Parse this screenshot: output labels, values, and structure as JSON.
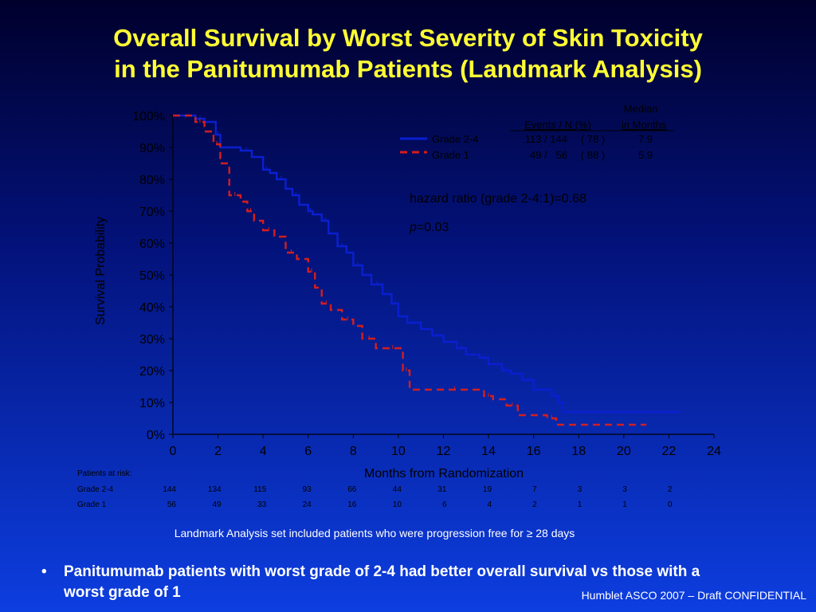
{
  "slide": {
    "title_line1": "Overall Survival by Worst Severity of Skin Toxicity",
    "title_line2": "in the Panitumumab Patients (Landmark Analysis)",
    "footnote": "Landmark Analysis set included patients who were progression free for ≥ 28 days",
    "bullet_symbol": "•",
    "bullet_text": "Panitumumab patients with worst grade of 2-4 had better overall survival vs those with a worst grade of 1",
    "credit": "Humblet ASCO 2007 – Draft  CONFIDENTIAL"
  },
  "chart_data": {
    "type": "line",
    "step": true,
    "xlabel": "Months from Randomization",
    "ylabel": "Survival Probability",
    "xlim": [
      0,
      24
    ],
    "ylim": [
      0,
      100
    ],
    "x_ticks": [
      "0",
      "2",
      "4",
      "6",
      "8",
      "10",
      "12",
      "14",
      "16",
      "18",
      "20",
      "22",
      "24"
    ],
    "y_ticks": [
      "0%",
      "10%",
      "20%",
      "30%",
      "40%",
      "50%",
      "60%",
      "70%",
      "80%",
      "90%",
      "100%"
    ],
    "grid": false,
    "legend": {
      "placement": "top-right",
      "header_events": "Events / N (%)",
      "header_median_line1": "Median",
      "header_median_line2": "in Months",
      "rows": [
        {
          "label": "Grade 2-4",
          "events": "113 / 144",
          "pct": "( 78 )",
          "median": "7.9"
        },
        {
          "label": "Grade 1",
          "events": "49 /   56",
          "pct": "( 88 )",
          "median": "5.9"
        }
      ]
    },
    "annotations": {
      "hazard_ratio": "hazard ratio (grade 2-4:1)=0.68",
      "p_italic": "p",
      "p_rest": "=0.03"
    },
    "series": [
      {
        "name": "Grade 2-4",
        "color": "#0a1fd0",
        "dash": "solid",
        "x": [
          0,
          1.0,
          1.4,
          1.9,
          2.1,
          3.0,
          3.5,
          4.0,
          4.3,
          4.6,
          5.0,
          5.3,
          5.6,
          6.0,
          6.2,
          6.6,
          6.9,
          7.3,
          7.7,
          8.0,
          8.4,
          8.8,
          9.3,
          9.7,
          10.0,
          10.4,
          11.0,
          11.5,
          12.0,
          12.6,
          13.0,
          13.6,
          14.0,
          14.6,
          15.0,
          15.5,
          16.0,
          16.8,
          17.1,
          17.3,
          22.5
        ],
        "y": [
          100,
          99,
          98,
          94,
          90,
          89,
          87,
          83,
          82,
          80,
          77,
          75,
          72,
          70,
          69,
          67,
          63,
          59,
          57,
          53,
          50,
          47,
          44,
          41,
          37,
          35,
          33,
          31,
          29,
          27,
          25,
          24,
          22,
          20,
          19,
          17,
          14,
          12,
          10,
          7,
          7
        ]
      },
      {
        "name": "Grade 1",
        "color": "#d41e1e",
        "dash": "dashed",
        "x": [
          0,
          1.0,
          1.4,
          1.8,
          2.1,
          2.5,
          3.0,
          3.3,
          3.6,
          4.0,
          4.5,
          5.0,
          5.5,
          6.0,
          6.3,
          6.6,
          7.0,
          7.5,
          8.0,
          8.4,
          9.0,
          9.5,
          10.0,
          10.2,
          10.5,
          12.0,
          13.0,
          13.8,
          14.2,
          14.8,
          15.3,
          16.6,
          17.0,
          21.0
        ],
        "y": [
          100,
          98,
          95,
          91,
          85,
          75,
          73,
          70,
          67,
          64,
          62,
          57,
          55,
          51,
          46,
          41,
          39,
          36,
          34,
          30,
          27,
          27,
          27,
          20,
          14,
          14,
          14,
          12,
          11,
          9,
          6,
          5,
          3,
          3
        ]
      }
    ],
    "risk_table": {
      "title": "Patients at risk:",
      "x": [
        0,
        2,
        4,
        6,
        8,
        10,
        12,
        14,
        16,
        18,
        20,
        22
      ],
      "rows": [
        {
          "label": "Grade 2-4",
          "values": [
            "144",
            "134",
            "115",
            "93",
            "66",
            "44",
            "31",
            "19",
            "7",
            "3",
            "3",
            "2"
          ]
        },
        {
          "label": "Grade 1",
          "values": [
            "56",
            "49",
            "33",
            "24",
            "16",
            "10",
            "6",
            "4",
            "2",
            "1",
            "1",
            "0"
          ]
        }
      ]
    }
  }
}
